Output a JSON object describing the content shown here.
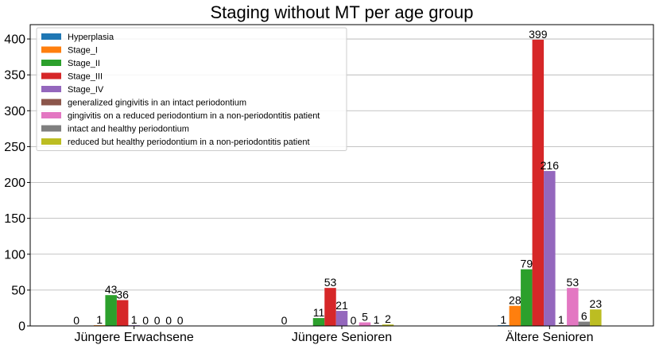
{
  "chart_data": {
    "type": "bar",
    "title": "Staging without MT per age group",
    "xlabel": "",
    "ylabel": "",
    "categories": [
      "Jüngere Erwachsene",
      "Jüngere Senioren",
      "Ältere Senioren"
    ],
    "ylim": [
      0,
      420
    ],
    "yticks": [
      0,
      50,
      100,
      150,
      200,
      250,
      300,
      350,
      400
    ],
    "grid": "y",
    "legend_position": "top-left",
    "series": [
      {
        "name": "Hyperplasia",
        "color": "#1f77b4",
        "values": [
          null,
          null,
          1
        ],
        "labels": [
          "",
          "",
          "1"
        ]
      },
      {
        "name": "Stage_I",
        "color": "#ff7f0e",
        "values": [
          1,
          null,
          28
        ],
        "labels": [
          "1",
          "",
          "28"
        ]
      },
      {
        "name": "Stage_II",
        "color": "#2ca02c",
        "values": [
          43,
          11,
          79
        ],
        "labels": [
          "43",
          "11",
          "79"
        ]
      },
      {
        "name": "Stage_III",
        "color": "#d62728",
        "values": [
          36,
          53,
          399
        ],
        "labels": [
          "36",
          "53",
          "399"
        ]
      },
      {
        "name": "Stage_IV",
        "color": "#9467bd",
        "values": [
          1,
          21,
          216
        ],
        "labels": [
          "1",
          "21",
          "216"
        ]
      },
      {
        "name": "generalized gingivitis in an intact periodontium",
        "color": "#8c564b",
        "values": [
          0,
          0,
          1
        ],
        "labels": [
          "0",
          "0",
          "1"
        ]
      },
      {
        "name": "gingivitis on a reduced periodontium in a non-periodontitis patient",
        "color": "#e377c2",
        "values": [
          0,
          5,
          53
        ],
        "labels": [
          "0",
          "5",
          "53"
        ]
      },
      {
        "name": "intact and healthy periodontium",
        "color": "#7f7f7f",
        "values": [
          0,
          1,
          6
        ],
        "labels": [
          "0",
          "1",
          "6"
        ]
      },
      {
        "name": "reduced but healthy periodontium in a non-periodontitis patient",
        "color": "#bcbd22",
        "values": [
          0,
          2,
          23
        ],
        "labels": [
          "0",
          "2",
          "23"
        ]
      }
    ],
    "extra_labels": [
      [
        "0",
        "0",
        ""
      ]
    ]
  }
}
